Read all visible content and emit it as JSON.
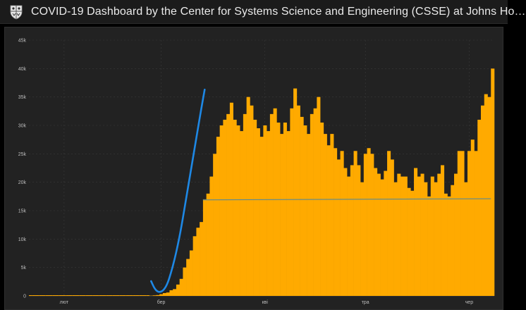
{
  "header": {
    "title": "COVID-19 Dashboard by the Center for Systems Science and Engineering (CSSE) at Johns Ho…",
    "logo_icon": "shield-crest-icon"
  },
  "colors": {
    "bar": "#FFAA00",
    "trend_curve": "#1E88E5",
    "average_line": "#5A8A94",
    "panel_bg": "#222222",
    "page_bg": "#000000"
  },
  "chart_data": {
    "type": "bar",
    "title": "",
    "xlabel": "",
    "ylabel": "",
    "ylim": [
      0,
      45000
    ],
    "y_ticks": [
      0,
      5000,
      10000,
      15000,
      20000,
      25000,
      30000,
      35000,
      40000,
      45000
    ],
    "y_tick_labels": [
      "0",
      "5k",
      "10k",
      "15k",
      "20k",
      "25k",
      "30k",
      "35k",
      "40k",
      "45k"
    ],
    "x_tick_labels": [
      {
        "label": "лют",
        "day": 10
      },
      {
        "label": "бер",
        "day": 39
      },
      {
        "label": "кві",
        "day": 70
      },
      {
        "label": "тра",
        "day": 100
      },
      {
        "label": "чер",
        "day": 131
      }
    ],
    "grid": true,
    "series": [
      {
        "values": [
          0,
          0,
          0,
          0,
          0,
          0,
          0,
          0,
          0,
          0,
          0,
          0,
          0,
          0,
          0,
          0,
          0,
          0,
          0,
          0,
          0,
          0,
          0,
          0,
          0,
          0,
          0,
          0,
          0,
          0,
          0,
          0,
          0,
          0,
          0,
          0,
          50,
          100,
          150,
          300,
          500,
          600,
          1000,
          1200,
          2000,
          3000,
          5000,
          6500,
          8000,
          10500,
          12000,
          13000,
          17000,
          18000,
          21000,
          25000,
          28000,
          30000,
          31000,
          32000,
          34000,
          31000,
          30000,
          29000,
          32000,
          35000,
          33500,
          31000,
          29500,
          28000,
          30000,
          29000,
          32000,
          33000,
          30500,
          28500,
          30500,
          29000,
          33000,
          36500,
          33500,
          31500,
          30000,
          28500,
          32000,
          33000,
          35000,
          30500,
          28500,
          26500,
          28500,
          26000,
          24000,
          25500,
          22500,
          21000,
          23000,
          25500,
          23000,
          20000,
          25000,
          26000,
          25000,
          22500,
          21500,
          20500,
          22000,
          25500,
          24000,
          20000,
          21500,
          21000,
          21000,
          19000,
          18500,
          22500,
          21000,
          21500,
          20000,
          17500,
          21000,
          20000,
          21500,
          23000,
          18000,
          17500,
          19500,
          21500,
          25500,
          25500,
          20000,
          25500,
          27500,
          25500,
          31000,
          33500,
          35500,
          35000,
          40000
        ]
      }
    ],
    "trend_curve_points": [
      [
        36,
        2600
      ],
      [
        37,
        1300
      ],
      [
        38,
        700
      ],
      [
        39,
        700
      ],
      [
        40,
        1200
      ],
      [
        41,
        2300
      ],
      [
        42,
        4200
      ],
      [
        43,
        6400
      ],
      [
        44,
        9000
      ],
      [
        45,
        12000
      ],
      [
        46,
        15500
      ],
      [
        47,
        19000
      ],
      [
        48,
        22500
      ],
      [
        49,
        26000
      ],
      [
        50,
        29500
      ],
      [
        51,
        33000
      ],
      [
        52,
        36300
      ]
    ],
    "average_line": {
      "from_day": 52,
      "to_day": 138,
      "from_value": 16900,
      "to_value": 17100
    }
  }
}
